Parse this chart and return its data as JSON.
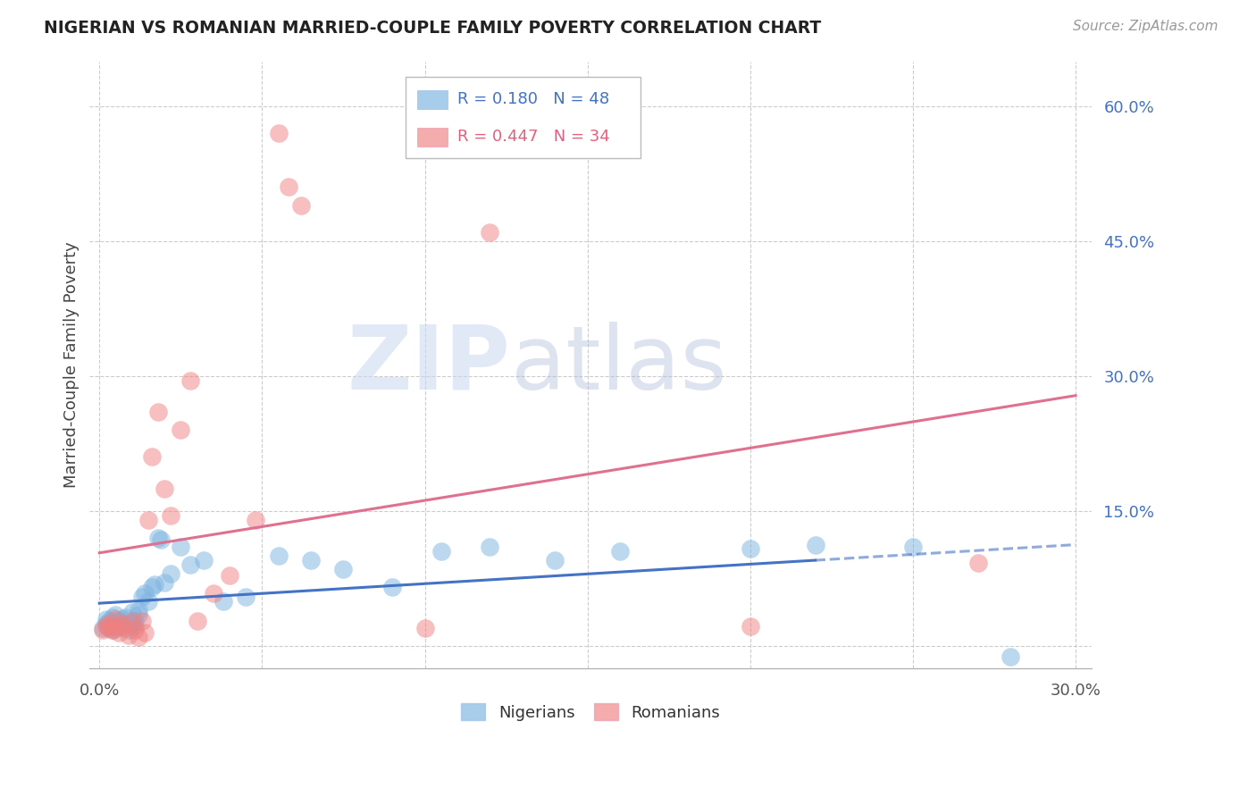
{
  "title": "NIGERIAN VS ROMANIAN MARRIED-COUPLE FAMILY POVERTY CORRELATION CHART",
  "source": "Source: ZipAtlas.com",
  "ylabel": "Married-Couple Family Poverty",
  "xlim": [
    -0.003,
    0.305
  ],
  "ylim": [
    -0.025,
    0.65
  ],
  "xtick_pos": [
    0.0,
    0.05,
    0.1,
    0.15,
    0.2,
    0.25,
    0.3
  ],
  "xtick_labels": [
    "0.0%",
    "",
    "",
    "",
    "",
    "",
    "30.0%"
  ],
  "ytick_pos": [
    0.0,
    0.15,
    0.3,
    0.45,
    0.6
  ],
  "ytick_labels_right": [
    "",
    "15.0%",
    "30.0%",
    "45.0%",
    "60.0%"
  ],
  "nigerian_R": 0.18,
  "nigerian_N": 48,
  "romanian_R": 0.447,
  "romanian_N": 34,
  "nigerian_color": "#7ab3e0",
  "romanian_color": "#f08080",
  "trend_nigerian_color": "#4472c4",
  "trend_romanian_color": "#e07090",
  "watermark_zip": "ZIP",
  "watermark_atlas": "atlas",
  "nigerian_x": [
    0.001,
    0.002,
    0.002,
    0.003,
    0.003,
    0.004,
    0.004,
    0.005,
    0.005,
    0.006,
    0.006,
    0.007,
    0.007,
    0.008,
    0.008,
    0.009,
    0.01,
    0.01,
    0.011,
    0.011,
    0.012,
    0.012,
    0.013,
    0.014,
    0.015,
    0.016,
    0.017,
    0.018,
    0.019,
    0.02,
    0.022,
    0.025,
    0.028,
    0.032,
    0.038,
    0.045,
    0.055,
    0.065,
    0.075,
    0.09,
    0.105,
    0.12,
    0.14,
    0.16,
    0.2,
    0.22,
    0.25,
    0.28
  ],
  "nigerian_y": [
    0.02,
    0.025,
    0.03,
    0.022,
    0.028,
    0.018,
    0.032,
    0.02,
    0.035,
    0.025,
    0.028,
    0.022,
    0.03,
    0.025,
    0.032,
    0.018,
    0.025,
    0.038,
    0.022,
    0.028,
    0.04,
    0.035,
    0.055,
    0.058,
    0.05,
    0.065,
    0.068,
    0.12,
    0.118,
    0.07,
    0.08,
    0.11,
    0.09,
    0.095,
    0.05,
    0.055,
    0.1,
    0.095,
    0.085,
    0.065,
    0.105,
    0.11,
    0.095,
    0.105,
    0.108,
    0.112,
    0.11,
    -0.012
  ],
  "romanian_x": [
    0.001,
    0.002,
    0.003,
    0.003,
    0.004,
    0.005,
    0.005,
    0.006,
    0.007,
    0.008,
    0.009,
    0.01,
    0.011,
    0.012,
    0.013,
    0.014,
    0.015,
    0.016,
    0.018,
    0.02,
    0.022,
    0.025,
    0.028,
    0.03,
    0.035,
    0.04,
    0.048,
    0.055,
    0.058,
    0.062,
    0.1,
    0.12,
    0.2,
    0.27
  ],
  "romanian_y": [
    0.018,
    0.022,
    0.02,
    0.025,
    0.018,
    0.022,
    0.03,
    0.015,
    0.025,
    0.02,
    0.012,
    0.028,
    0.018,
    0.01,
    0.028,
    0.015,
    0.14,
    0.21,
    0.26,
    0.175,
    0.145,
    0.24,
    0.295,
    0.028,
    0.058,
    0.078,
    0.14,
    0.57,
    0.51,
    0.49,
    0.02,
    0.46,
    0.022,
    0.092
  ]
}
